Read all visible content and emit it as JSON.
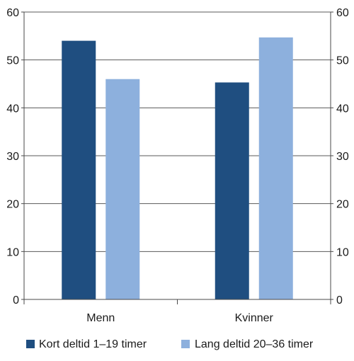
{
  "chart_data": {
    "type": "bar",
    "categories": [
      "Menn",
      "Kvinner"
    ],
    "series": [
      {
        "name": "Kort deltid 1–19 timer",
        "values": [
          54,
          45.3
        ],
        "color": "#1f4e80"
      },
      {
        "name": "Lang deltid 20–36 timer",
        "values": [
          46,
          54.7
        ],
        "color": "#8db0dd"
      }
    ],
    "ylim": [
      0,
      60
    ],
    "yticks": [
      0,
      10,
      20,
      30,
      40,
      50,
      60
    ],
    "dual_y_axis": true,
    "grid": true,
    "legend": "bottom"
  }
}
